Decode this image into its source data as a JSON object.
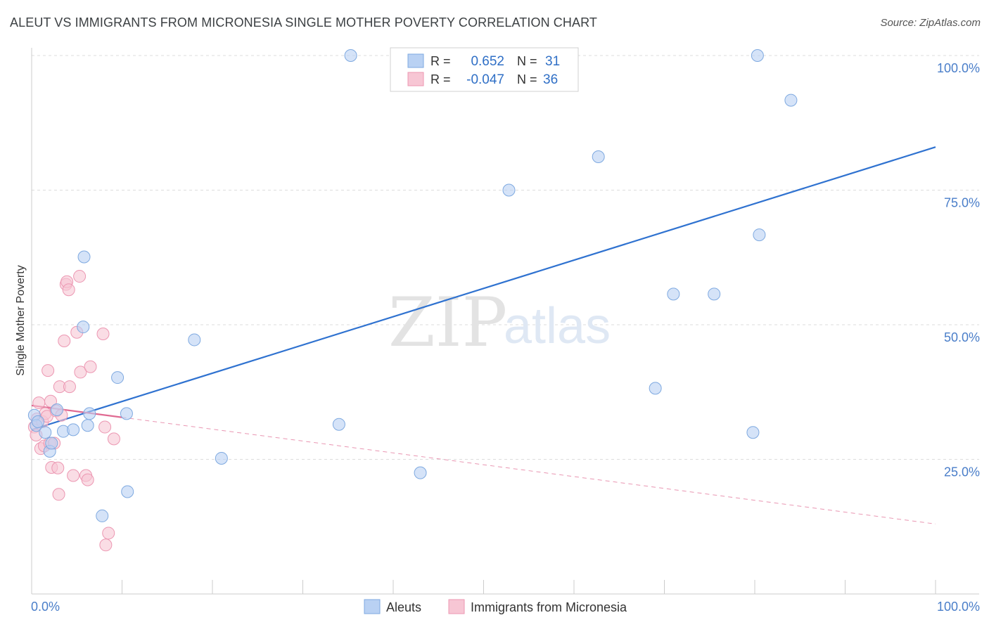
{
  "title": "ALEUT VS IMMIGRANTS FROM MICRONESIA SINGLE MOTHER POVERTY CORRELATION CHART",
  "source": "Source: ZipAtlas.com",
  "watermark": {
    "zip": "ZIP",
    "atlas": "atlas"
  },
  "legend": {
    "r_label": "R =",
    "n_label": "N =",
    "series": [
      {
        "r": "0.652",
        "n": "31"
      },
      {
        "r": "-0.047",
        "n": "36"
      }
    ]
  },
  "colors": {
    "aleut_fill": "#b9d1f3",
    "aleut_stroke": "#7ea9e0",
    "aleut_line": "#2f72d0",
    "micro_fill": "#f7c6d4",
    "micro_stroke": "#ec97b2",
    "micro_line": "#e06a92",
    "grid": "#dddddd",
    "tick_text": "#4a7ec9"
  },
  "chart_data": {
    "type": "scatter",
    "title": "ALEUT VS IMMIGRANTS FROM MICRONESIA SINGLE MOTHER POVERTY CORRELATION CHART",
    "xlabel": "",
    "ylabel": "Single Mother Poverty",
    "xlim": [
      0,
      100
    ],
    "ylim": [
      0,
      100
    ],
    "x_tick_labels": [
      "0.0%",
      "100.0%"
    ],
    "y_ticks": [
      25,
      50,
      75,
      100
    ],
    "y_tick_labels": [
      "25.0%",
      "50.0%",
      "75.0%",
      "100.0%"
    ],
    "grid": true,
    "legend_position": "top-center",
    "series": [
      {
        "name": "Aleuts",
        "r": 0.652,
        "n": 31,
        "trend": {
          "x": [
            0,
            100
          ],
          "y": [
            30.5,
            83.0
          ]
        },
        "points": [
          [
            0.3,
            33.2
          ],
          [
            0.5,
            31.3
          ],
          [
            0.7,
            32.0
          ],
          [
            1.5,
            30.0
          ],
          [
            2.0,
            26.5
          ],
          [
            2.2,
            28.0
          ],
          [
            2.8,
            34.2
          ],
          [
            3.5,
            30.2
          ],
          [
            4.6,
            30.5
          ],
          [
            5.7,
            49.6
          ],
          [
            5.8,
            62.6
          ],
          [
            6.2,
            31.3
          ],
          [
            6.4,
            33.5
          ],
          [
            7.8,
            14.5
          ],
          [
            9.5,
            40.2
          ],
          [
            10.5,
            33.5
          ],
          [
            10.6,
            19.0
          ],
          [
            18.0,
            47.2
          ],
          [
            21.0,
            25.2
          ],
          [
            34.0,
            31.5
          ],
          [
            35.3,
            100.0
          ],
          [
            43.0,
            22.5
          ],
          [
            52.8,
            75.0
          ],
          [
            62.7,
            81.2
          ],
          [
            69.0,
            38.2
          ],
          [
            71.0,
            55.7
          ],
          [
            75.5,
            55.7
          ],
          [
            79.8,
            30.0
          ],
          [
            80.3,
            100.0
          ],
          [
            80.5,
            66.7
          ],
          [
            84.0,
            91.7
          ]
        ]
      },
      {
        "name": "Immigrants from Micronesia",
        "r": -0.047,
        "n": 36,
        "trend": {
          "x": [
            0,
            100
          ],
          "y": [
            35.0,
            13.0
          ]
        },
        "trend_solid_until_x": 10,
        "points": [
          [
            0.3,
            31.0
          ],
          [
            0.5,
            29.5
          ],
          [
            0.6,
            32.5
          ],
          [
            0.8,
            35.5
          ],
          [
            1.0,
            27.0
          ],
          [
            1.2,
            32.0
          ],
          [
            1.4,
            27.5
          ],
          [
            1.5,
            33.5
          ],
          [
            1.7,
            33.0
          ],
          [
            1.8,
            41.5
          ],
          [
            2.0,
            28.0
          ],
          [
            2.1,
            35.8
          ],
          [
            2.2,
            23.5
          ],
          [
            2.5,
            28.0
          ],
          [
            2.7,
            34.0
          ],
          [
            2.9,
            23.4
          ],
          [
            3.0,
            18.5
          ],
          [
            3.1,
            38.5
          ],
          [
            3.3,
            33.2
          ],
          [
            3.6,
            47.0
          ],
          [
            3.8,
            57.5
          ],
          [
            3.9,
            58.0
          ],
          [
            4.1,
            56.5
          ],
          [
            4.2,
            38.5
          ],
          [
            4.6,
            22.0
          ],
          [
            5.0,
            48.6
          ],
          [
            5.3,
            59.0
          ],
          [
            5.4,
            41.2
          ],
          [
            6.0,
            22.0
          ],
          [
            6.2,
            21.2
          ],
          [
            6.5,
            42.2
          ],
          [
            7.9,
            48.3
          ],
          [
            8.1,
            31.0
          ],
          [
            8.2,
            9.1
          ],
          [
            8.5,
            11.3
          ],
          [
            9.1,
            28.8
          ]
        ]
      }
    ]
  }
}
